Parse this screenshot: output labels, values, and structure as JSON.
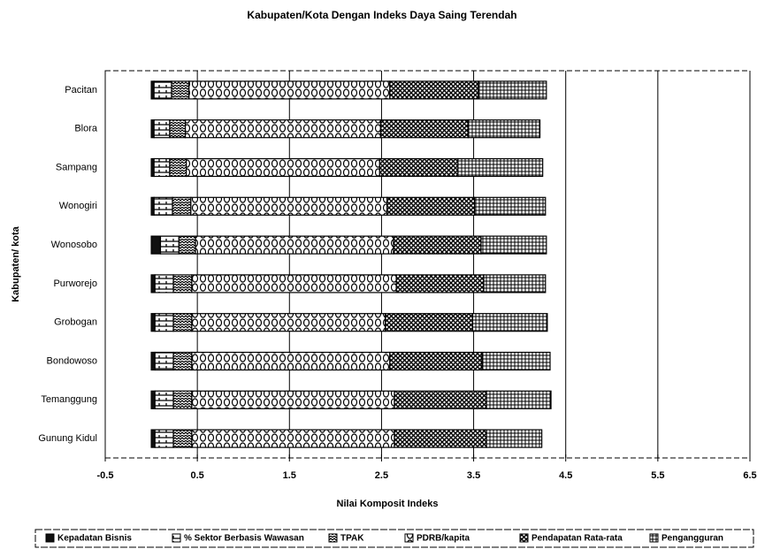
{
  "chart_data": {
    "type": "bar",
    "orientation": "horizontal",
    "stacked": true,
    "title": "Kabupaten/Kota Dengan Indeks Daya Saing Terendah",
    "x_label": "Nilai Komposit Indeks",
    "y_label": "Kabupaten/ kota",
    "categories": [
      "Pacitan",
      "Blora",
      "Sampang",
      "Wonogiri",
      "Wonosobo",
      "Purworejo",
      "Grobogan",
      "Bondowoso",
      "Temanggung",
      "Gunung Kidul"
    ],
    "series": [
      {
        "name": "Kepadatan Bisnis",
        "values": [
          0.03,
          0.03,
          0.03,
          0.03,
          0.1,
          0.04,
          0.04,
          0.04,
          0.04,
          0.04
        ]
      },
      {
        "name": "% Sektor Berbasis Wawasan",
        "values": [
          0.19,
          0.17,
          0.17,
          0.2,
          0.2,
          0.2,
          0.2,
          0.2,
          0.2,
          0.2
        ]
      },
      {
        "name": "TPAK",
        "values": [
          0.19,
          0.17,
          0.18,
          0.2,
          0.18,
          0.2,
          0.2,
          0.2,
          0.2,
          0.2
        ]
      },
      {
        "name": "PDRB/kapita",
        "values": [
          2.18,
          2.12,
          2.1,
          2.13,
          2.15,
          2.22,
          2.1,
          2.15,
          2.2,
          2.2
        ]
      },
      {
        "name": "Pendapatan Rata-rata",
        "values": [
          0.96,
          0.95,
          0.85,
          0.95,
          0.95,
          0.95,
          0.95,
          1.0,
          1.0,
          1.0
        ]
      },
      {
        "name": "Pengangguran",
        "values": [
          0.74,
          0.78,
          0.92,
          0.77,
          0.71,
          0.67,
          0.81,
          0.74,
          0.7,
          0.6
        ]
      }
    ],
    "xlim": [
      -0.5,
      6.5
    ],
    "xticks": [
      -0.5,
      0.5,
      1.5,
      2.5,
      3.5,
      4.5,
      5.5,
      6.5
    ],
    "grid": true
  }
}
